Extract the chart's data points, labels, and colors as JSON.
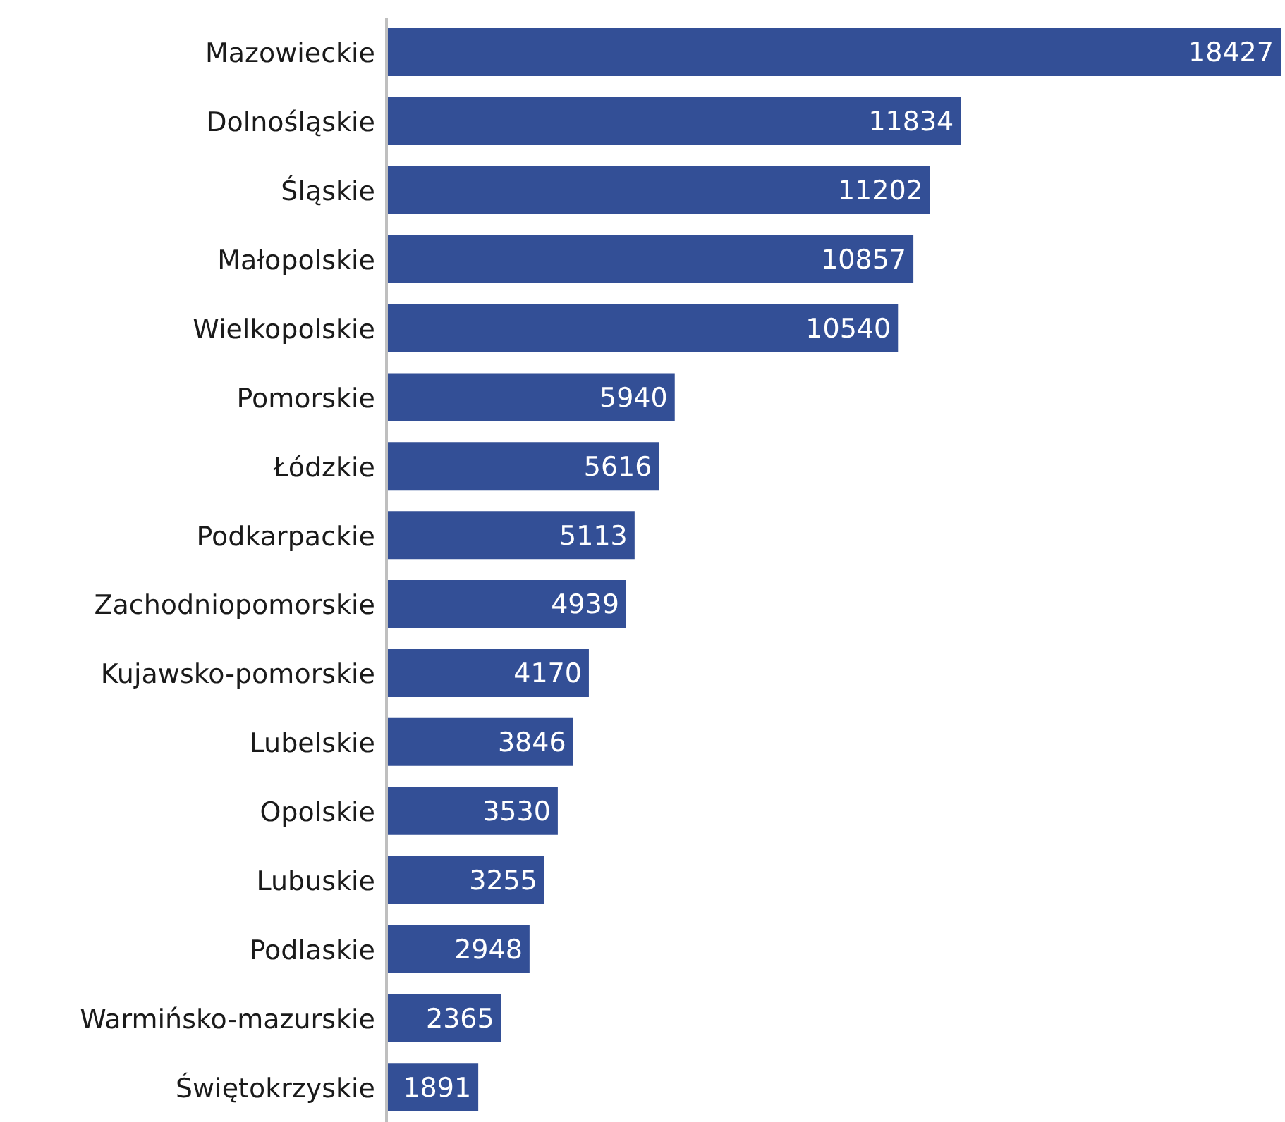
{
  "chart_data": {
    "type": "bar",
    "orientation": "horizontal",
    "categories": [
      "Mazowieckie",
      "Dolnośląskie",
      "Śląskie",
      "Małopolskie",
      "Wielkopolskie",
      "Pomorskie",
      "Łódzkie",
      "Podkarpackie",
      "Zachodniopomorskie",
      "Kujawsko-pomorskie",
      "Lubelskie",
      "Opolskie",
      "Lubuskie",
      "Podlaskie",
      "Warmińsko-mazurskie",
      "Świętokrzyskie"
    ],
    "values": [
      18427,
      11834,
      11202,
      10857,
      10540,
      5940,
      5616,
      5113,
      4939,
      4170,
      3846,
      3530,
      3255,
      2948,
      2365,
      1891
    ],
    "color": "#334f96",
    "data_labels": true,
    "tick_labels": "y"
  }
}
